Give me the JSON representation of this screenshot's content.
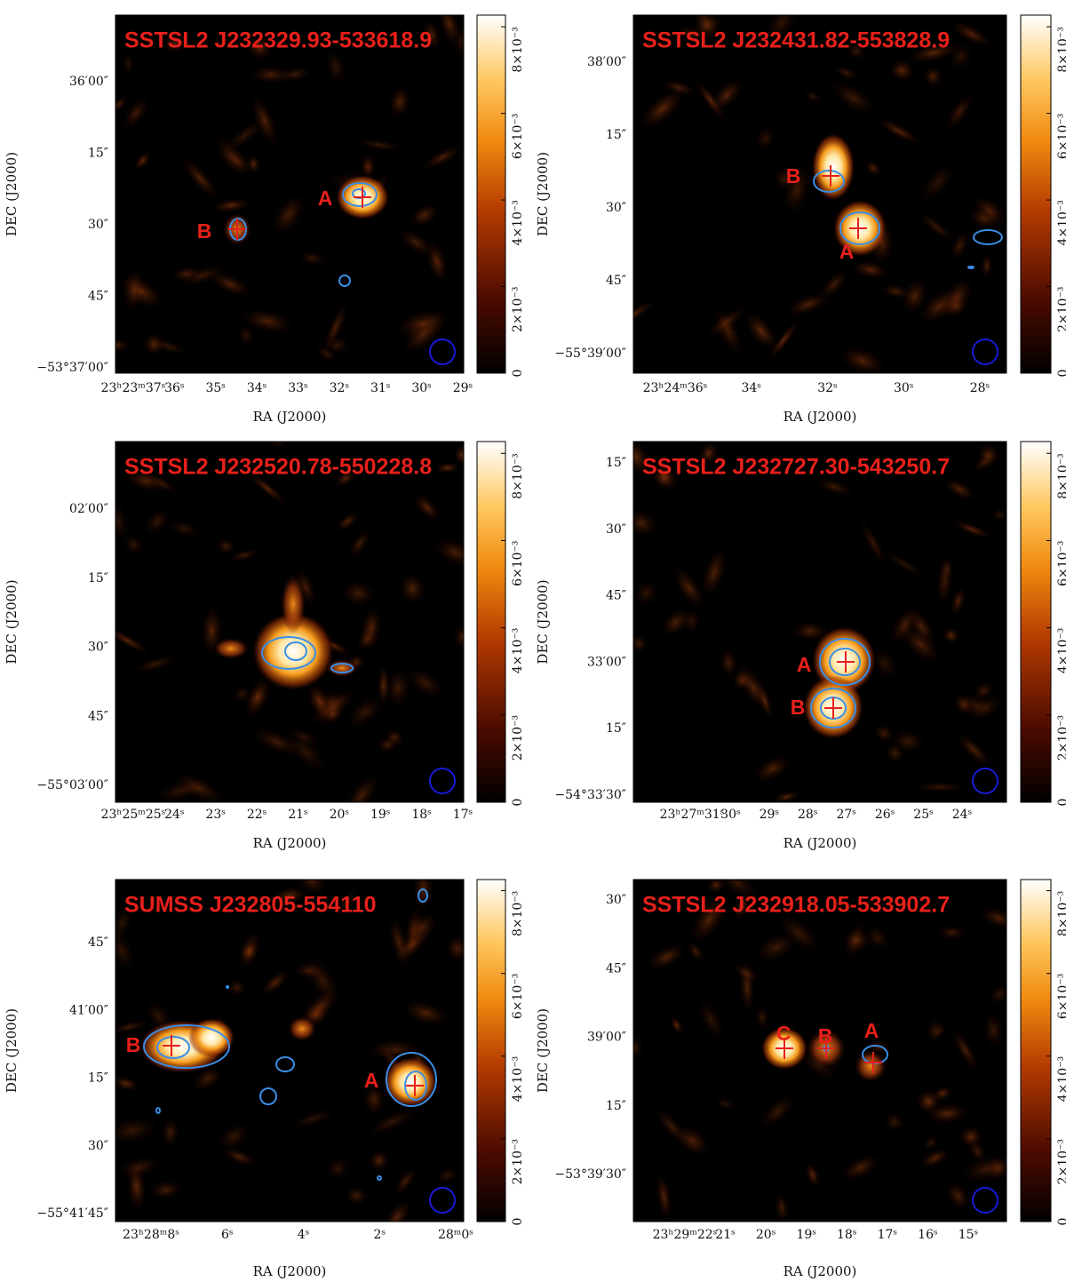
{
  "panels": [
    {
      "title": "SSTSL2 J232329.93-533618.9",
      "xlabel": "RA (J2000)",
      "ylabel": "DEC (J2000)",
      "xticks": [
        "23ʰ23ᵐ37ˢ",
        "36ˢ",
        "35ˢ",
        "34ˢ",
        "33ˢ",
        "32ˢ",
        "31ˢ",
        "30ˢ",
        "29ˢ"
      ],
      "yticks": [
        "36′00″",
        "15″",
        "30″",
        "45″",
        "−53°37′00″"
      ],
      "sources": [
        "A",
        "B"
      ],
      "colorbar": {
        "lim": [
          0,
          0.00827
        ],
        "ticks": [
          0,
          {
            "value": 0.002,
            "label": "2×10⁻³"
          },
          {
            "value": 0.004,
            "label": "4×10⁻³"
          },
          {
            "value": 0.006,
            "label": "6×10⁻³"
          },
          {
            "value": 0.008,
            "label": "8×10⁻³"
          }
        ]
      }
    },
    {
      "title": "SSTSL2 J232431.82-553828.9",
      "xlabel": "RA (J2000)",
      "ylabel": "DEC (J2000)",
      "xticks": [
        "23ʰ24ᵐ36ˢ",
        "34ˢ",
        "32ˢ",
        "30ˢ",
        "28ˢ"
      ],
      "yticks": [
        "38′00″",
        "15″",
        "30″",
        "45″",
        "−55°39′00″"
      ],
      "sources": [
        "B",
        "A"
      ],
      "colorbar": {
        "lim": [
          0,
          0.00827
        ],
        "ticks": [
          0,
          {
            "value": 0.002,
            "label": "2×10⁻³"
          },
          {
            "value": 0.004,
            "label": "4×10⁻³"
          },
          {
            "value": 0.006,
            "label": "6×10⁻³"
          },
          {
            "value": 0.008,
            "label": "8×10⁻³"
          }
        ]
      }
    },
    {
      "title": "SSTSL2 J232520.78-550228.8",
      "xlabel": "RA (J2000)",
      "ylabel": "DEC (J2000)",
      "xticks": [
        "23ʰ25ᵐ25ˢ",
        "24ˢ",
        "23ˢ",
        "22ˢ",
        "21ˢ",
        "20ˢ",
        "19ˢ",
        "18ˢ",
        "17ˢ"
      ],
      "yticks": [
        "02′00″",
        "15″",
        "30″",
        "45″",
        "−55°03′00″"
      ],
      "sources": [],
      "colorbar": {
        "lim": [
          0,
          0.00827
        ],
        "ticks": [
          0,
          {
            "value": 0.002,
            "label": "2×10⁻³"
          },
          {
            "value": 0.004,
            "label": "4×10⁻³"
          },
          {
            "value": 0.006,
            "label": "6×10⁻³"
          },
          {
            "value": 0.008,
            "label": "8×10⁻³"
          }
        ]
      }
    },
    {
      "title": "SSTSL2 J232727.30-543250.7",
      "xlabel": "RA (J2000)",
      "ylabel": "DEC (J2000)",
      "xticks": [
        "23ʰ27ᵐ31ˢ",
        "30ˢ",
        "29ˢ",
        "28ˢ",
        "27ˢ",
        "26ˢ",
        "25ˢ",
        "24ˢ"
      ],
      "yticks": [
        "15″",
        "30″",
        "45″",
        "33′00″",
        "15″",
        "−54°33′30″"
      ],
      "sources": [
        "A",
        "B"
      ],
      "colorbar": {
        "lim": [
          0,
          0.00827
        ],
        "ticks": [
          0,
          {
            "value": 0.002,
            "label": "2×10⁻³"
          },
          {
            "value": 0.004,
            "label": "4×10⁻³"
          },
          {
            "value": 0.006,
            "label": "6×10⁻³"
          },
          {
            "value": 0.008,
            "label": "8×10⁻³"
          }
        ]
      }
    },
    {
      "title": "SUMSS J232805-554110",
      "xlabel": "RA (J2000)",
      "ylabel": "DEC (J2000)",
      "xticks": [
        "23ʰ28ᵐ8ˢ",
        "6ˢ",
        "4ˢ",
        "2ˢ",
        "28ᵐ0ˢ"
      ],
      "yticks": [
        "45″",
        "41′00″",
        "15″",
        "30″",
        "−55°41′45″"
      ],
      "sources": [
        "B",
        "A"
      ],
      "colorbar": {
        "lim": [
          0,
          0.00827
        ],
        "ticks": [
          0,
          {
            "value": 0.002,
            "label": "2×10⁻³"
          },
          {
            "value": 0.004,
            "label": "4×10⁻³"
          },
          {
            "value": 0.006,
            "label": "6×10⁻³"
          },
          {
            "value": 0.008,
            "label": "8×10⁻³"
          }
        ]
      }
    },
    {
      "title": "SSTSL2 J232918.05-533902.7",
      "xlabel": "RA (J2000)",
      "ylabel": "DEC (J2000)",
      "xticks": [
        "23ʰ29ᵐ22ˢ",
        "21ˢ",
        "20ˢ",
        "19ˢ",
        "18ˢ",
        "17ˢ",
        "16ˢ",
        "15ˢ"
      ],
      "yticks": [
        "30″",
        "45″",
        "39′00″",
        "15″",
        "−53°39′30″"
      ],
      "sources": [
        "C",
        "B",
        "A"
      ],
      "colorbar": {
        "lim": [
          0,
          0.00827
        ],
        "ticks": [
          0,
          {
            "value": 0.002,
            "label": "2×10⁻³"
          },
          {
            "value": 0.004,
            "label": "4×10⁻³"
          },
          {
            "value": 0.006,
            "label": "6×10⁻³"
          },
          {
            "value": 0.008,
            "label": "8×10⁻³"
          }
        ]
      }
    }
  ]
}
